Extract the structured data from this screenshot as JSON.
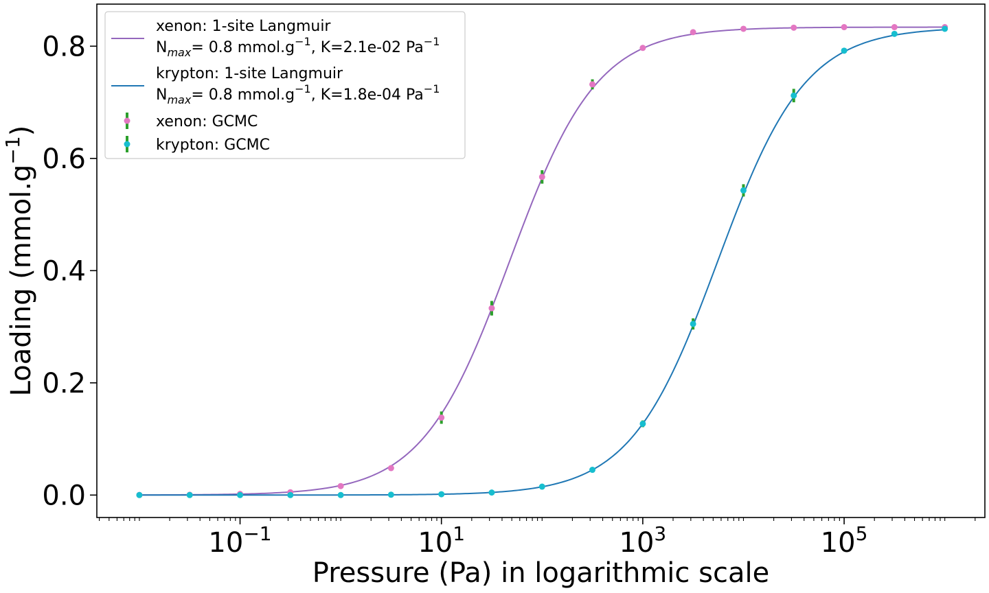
{
  "chart_data": {
    "type": "scatter",
    "title": "",
    "xlabel": "Pressure (Pa) in logarithmic scale",
    "ylabel": "Loading (mmol.g",
    "ylabel_sup": "−1",
    "ylabel_close": ")",
    "xscale": "log",
    "xlim": [
      0.00378,
      2500000.0
    ],
    "ylim": [
      -0.04,
      0.875
    ],
    "x_ticks": [
      {
        "value": 0.1,
        "base": "10",
        "exp": "−1"
      },
      {
        "value": 10,
        "base": "10",
        "exp": "1"
      },
      {
        "value": 1000,
        "base": "10",
        "exp": "3"
      },
      {
        "value": 100000,
        "base": "10",
        "exp": "5"
      }
    ],
    "y_ticks": [
      {
        "value": 0.0,
        "label": "0.0"
      },
      {
        "value": 0.2,
        "label": "0.2"
      },
      {
        "value": 0.4,
        "label": "0.4"
      },
      {
        "value": 0.6,
        "label": "0.6"
      },
      {
        "value": 0.8,
        "label": "0.8"
      }
    ],
    "grid": false,
    "legend_position": "top-left",
    "series": [
      {
        "name": "xenon: 1-site Langmuir",
        "kind": "fit",
        "nmax": 0.834,
        "K": 0.021,
        "color": "#9467bd",
        "legend_line1": "xenon: 1-site Langmuir",
        "legend_line2_pre": "N",
        "legend_line2_sub": "max",
        "legend_line2_mid": "=  0.8 mmol.g",
        "legend_line2_sup1": "−1",
        "legend_line2_post": ", K=2.1e-02 Pa",
        "legend_line2_sup2": "−1"
      },
      {
        "name": "krypton: 1-site Langmuir",
        "kind": "fit",
        "nmax": 0.834,
        "K": 0.00018,
        "color": "#1f77b4",
        "legend_line1": "krypton: 1-site Langmuir",
        "legend_line2_pre": "N",
        "legend_line2_sub": "max",
        "legend_line2_mid": "=  0.8 mmol.g",
        "legend_line2_sup1": "−1",
        "legend_line2_post": ", K=1.8e-04 Pa",
        "legend_line2_sup2": "−1"
      },
      {
        "name": "xenon: GCMC",
        "kind": "points",
        "color": "#e377c2",
        "errorbar_color": "#2ca02c",
        "x": [
          0.01,
          0.0316,
          0.1,
          0.316,
          1,
          3.16,
          10,
          31.6,
          100,
          316,
          1000,
          3160,
          10000,
          31600,
          100000,
          316000,
          1000000
        ],
        "y": [
          0.0002,
          0.0005,
          0.002,
          0.005,
          0.016,
          0.048,
          0.138,
          0.333,
          0.567,
          0.732,
          0.797,
          0.825,
          0.831,
          0.833,
          0.834,
          0.834,
          0.834
        ],
        "err": [
          0,
          0,
          0,
          0,
          0,
          0,
          0.011,
          0.013,
          0.012,
          0.009,
          0,
          0,
          0,
          0,
          0,
          0,
          0
        ]
      },
      {
        "name": "krypton: GCMC",
        "kind": "points",
        "color": "#17becf",
        "errorbar_color": "#2ca02c",
        "x": [
          0.01,
          0.0316,
          0.1,
          0.316,
          1,
          3.16,
          10,
          31.6,
          100,
          316,
          1000,
          3160,
          10000,
          31600,
          100000,
          316000,
          1000000
        ],
        "y": [
          0.0,
          0.0,
          0.0,
          0.0,
          0.0,
          0.0006,
          0.0015,
          0.0045,
          0.015,
          0.045,
          0.127,
          0.305,
          0.543,
          0.712,
          0.792,
          0.822,
          0.831
        ],
        "err": [
          0,
          0,
          0,
          0,
          0,
          0,
          0,
          0,
          0,
          0,
          0.006,
          0.01,
          0.011,
          0.012,
          0,
          0,
          0
        ]
      }
    ]
  }
}
